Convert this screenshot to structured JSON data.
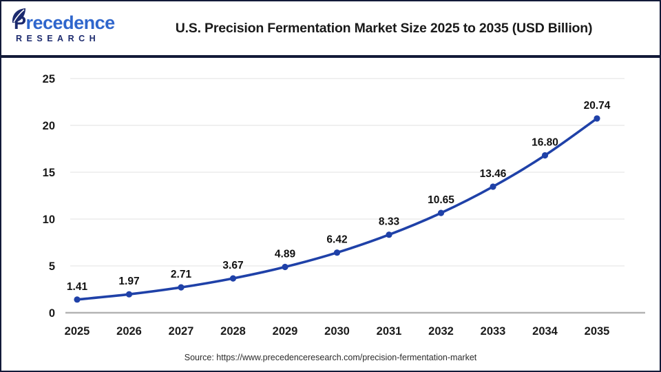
{
  "header": {
    "logo": {
      "brand_initial": "P",
      "brand_rest": "recedence",
      "subtext": "RESEARCH",
      "brand_color": "#2f66cc",
      "sub_color": "#1c2a6e"
    },
    "title": "U.S. Precision Fermentation Market Size 2025 to 2035 (USD Billion)"
  },
  "chart_data": {
    "type": "line",
    "title": "U.S. Precision Fermentation Market Size 2025 to 2035 (USD Billion)",
    "categories": [
      "2025",
      "2026",
      "2027",
      "2028",
      "2029",
      "2030",
      "2031",
      "2032",
      "2033",
      "2034",
      "2035"
    ],
    "values": [
      1.41,
      1.97,
      2.71,
      3.67,
      4.89,
      6.42,
      8.33,
      10.65,
      13.46,
      16.8,
      20.74
    ],
    "xlabel": "",
    "ylabel": "",
    "ylim": [
      0,
      25
    ],
    "yticks": [
      0,
      5,
      10,
      15,
      20,
      25
    ],
    "grid": true,
    "legend": false,
    "line_color": "#1f41a8",
    "marker_color": "#1f41a8",
    "grid_color": "#ececec",
    "axis_line_color": "#b3b3b3",
    "tick_label_color": "#1a1a1a",
    "data_label_color": "#111111"
  },
  "footer": {
    "source": "Source: https://www.precedenceresearch.com/precision-fermentation-market"
  }
}
